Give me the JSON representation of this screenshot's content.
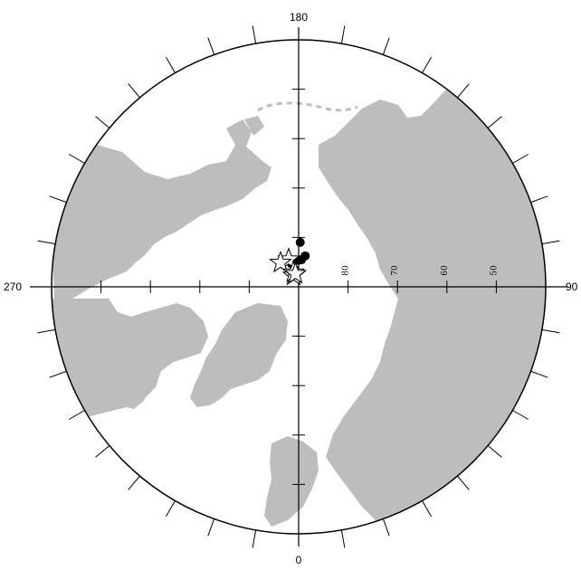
{
  "map": {
    "projection": "north-polar-stereographic",
    "land_color": "#bdbdbd",
    "ocean_color": "#ffffff",
    "longitude_labels": {
      "top": "180",
      "right": "90",
      "bottom": "0",
      "left": "270"
    },
    "latitude_labels": [
      "80",
      "70",
      "60",
      "50"
    ],
    "latitude_values": [
      80,
      70,
      60,
      50
    ],
    "tick_interval_deg": 10,
    "markers": {
      "dots": [
        {
          "lon": 178,
          "lat": 81
        },
        {
          "lon": 174,
          "lat": 84.5
        },
        {
          "lon": 178,
          "lat": 84.6
        },
        {
          "lon": 183,
          "lat": 84.6
        },
        {
          "lon": 168,
          "lat": 83.6
        },
        {
          "lon": 197,
          "lat": 85.1
        },
        {
          "lon": 193,
          "lat": 86.4
        }
      ],
      "stars": [
        {
          "lon": 200,
          "lat": 84.1
        },
        {
          "lon": 217,
          "lat": 83.9
        },
        {
          "lon": 204,
          "lat": 87.5
        },
        {
          "lon": 200,
          "lat": 86.9
        },
        {
          "lon": 194,
          "lat": 87.3
        }
      ]
    }
  }
}
